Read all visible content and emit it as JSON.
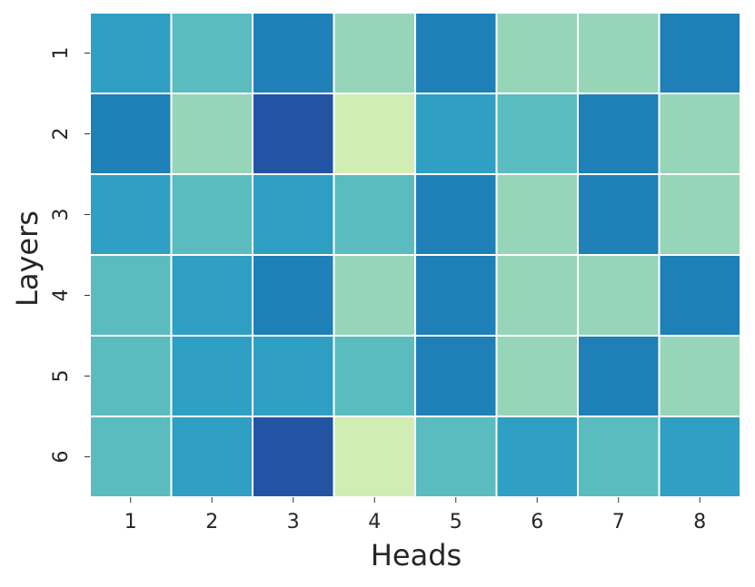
{
  "chart_data": {
    "type": "heatmap",
    "x_label": "Heads",
    "y_label": "Layers",
    "x_categories": [
      "1",
      "2",
      "3",
      "4",
      "5",
      "6",
      "7",
      "8"
    ],
    "y_categories": [
      "1",
      "2",
      "3",
      "4",
      "5",
      "6"
    ],
    "cell_colors": [
      [
        "#2f9fc3",
        "#5bbcc0",
        "#1f7fb7",
        "#97d5b9",
        "#1f7fb7",
        "#97d5b9",
        "#97d5b9",
        "#1f7fb7"
      ],
      [
        "#1f7fb7",
        "#97d5b9",
        "#2254a3",
        "#d1edb3",
        "#2f9fc3",
        "#5bbcc0",
        "#1f7fb7",
        "#97d5b9"
      ],
      [
        "#2f9fc3",
        "#5bbcc0",
        "#2f9fc3",
        "#5bbcc0",
        "#1f7fb7",
        "#97d5b9",
        "#1f7fb7",
        "#97d5b9"
      ],
      [
        "#5bbcc0",
        "#2f9fc3",
        "#1f7fb7",
        "#97d5b9",
        "#1f7fb7",
        "#97d5b9",
        "#97d5b9",
        "#1f7fb7"
      ],
      [
        "#5bbcc0",
        "#2f9fc3",
        "#2f9fc3",
        "#5bbcc0",
        "#1f7fb7",
        "#97d5b9",
        "#1f7fb7",
        "#97d5b9"
      ],
      [
        "#5bbcc0",
        "#2f9fc3",
        "#2254a3",
        "#d1edb3",
        "#5bbcc0",
        "#2f9fc3",
        "#5bbcc0",
        "#2f9fc3"
      ]
    ]
  }
}
